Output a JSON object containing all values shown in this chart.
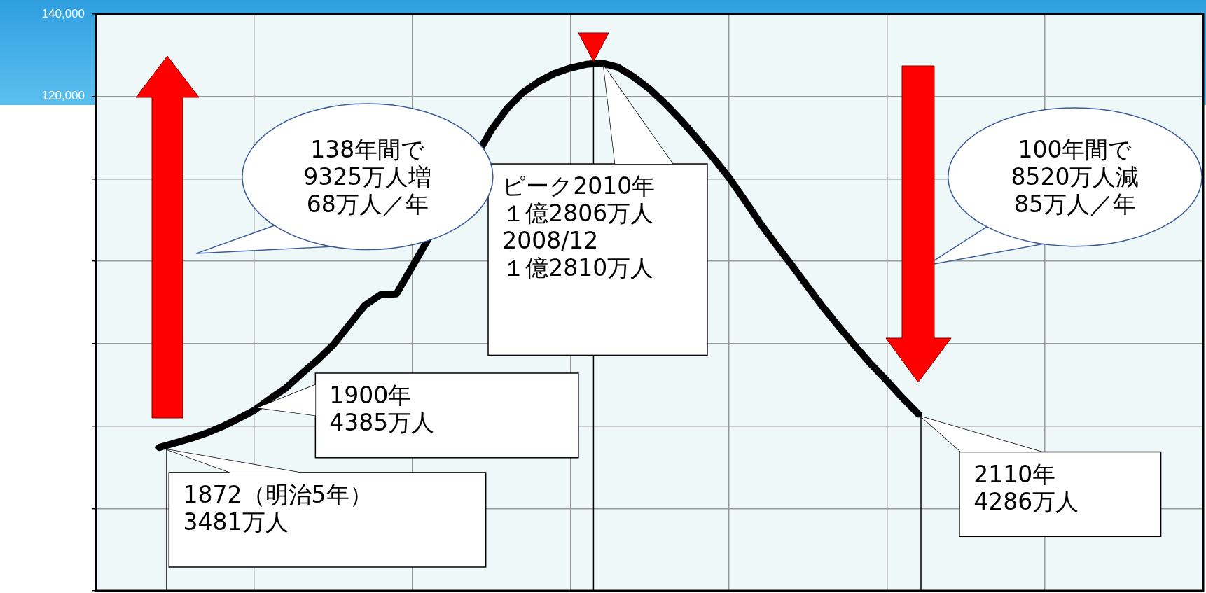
{
  "chart_data": {
    "type": "line",
    "categories": [
      null,
      null,
      null,
      null,
      null,
      null,
      null,
      null,
      null,
      null,
      null,
      null,
      null,
      null,
      null,
      null,
      null,
      null,
      null,
      null,
      null,
      null,
      null,
      null,
      null,
      null,
      null,
      null,
      null,
      null,
      null,
      null,
      null,
      null,
      null,
      null,
      null,
      null,
      null,
      null,
      null,
      null,
      null,
      null,
      null,
      null,
      null,
      null,
      null,
      null,
      null,
      null,
      null,
      null,
      null,
      null,
      null,
      null,
      null,
      null,
      null,
      null,
      null,
      null,
      null,
      null,
      null,
      null,
      null,
      null,
      null
    ],
    "series": [
      {
        "color": "#000000",
        "values": [
          null,
          null,
          null,
          null,
          34800,
          35900,
          37000,
          38300,
          39900,
          41800,
          43800,
          46600,
          49200,
          52700,
          56000,
          59700,
          64500,
          69300,
          71900,
          72100,
          null,
          null,
          null,
          null,
          null,
          111900,
          117100,
          121000,
          123600,
          125600,
          126900,
          127800,
          128100,
          127100,
          124700,
          121800,
          118200,
          114200,
          109800,
          105200,
          100400,
          94900,
          89200,
          84000,
          79000,
          73800,
          68700,
          64000,
          59400,
          55000,
          51000,
          46800,
          42900,
          null,
          null,
          null,
          null,
          null,
          null,
          null,
          null,
          null,
          null,
          null,
          null,
          null,
          null,
          null,
          null,
          null,
          null
        ]
      }
    ],
    "ylim": [
      0,
      140000
    ],
    "yticks": [
      {
        "value": 0,
        "label": null
      },
      {
        "value": 20000,
        "label": null
      },
      {
        "value": 40000,
        "label": null
      },
      {
        "value": 60000,
        "label": null
      },
      {
        "value": 80000,
        "label": null
      },
      {
        "value": 100000,
        "label": null
      },
      {
        "value": 120000,
        "label": "120,000"
      },
      {
        "value": 140000,
        "label": "140,000"
      }
    ],
    "tick_labels": "y",
    "grid": true,
    "legend": false,
    "marker": "none",
    "line_style": "solid",
    "annotations": [
      "1872（明治5年）",
      "3481万人",
      "1900年",
      "4385万人",
      "ピーク2010年",
      "１億2806万人",
      "2008/12",
      "１億2810万人",
      "2110年",
      "4286万人",
      "138年間で",
      "9325万人増",
      "68万人／年",
      "100年間で",
      "8520万人減",
      "85万人／年"
    ]
  }
}
